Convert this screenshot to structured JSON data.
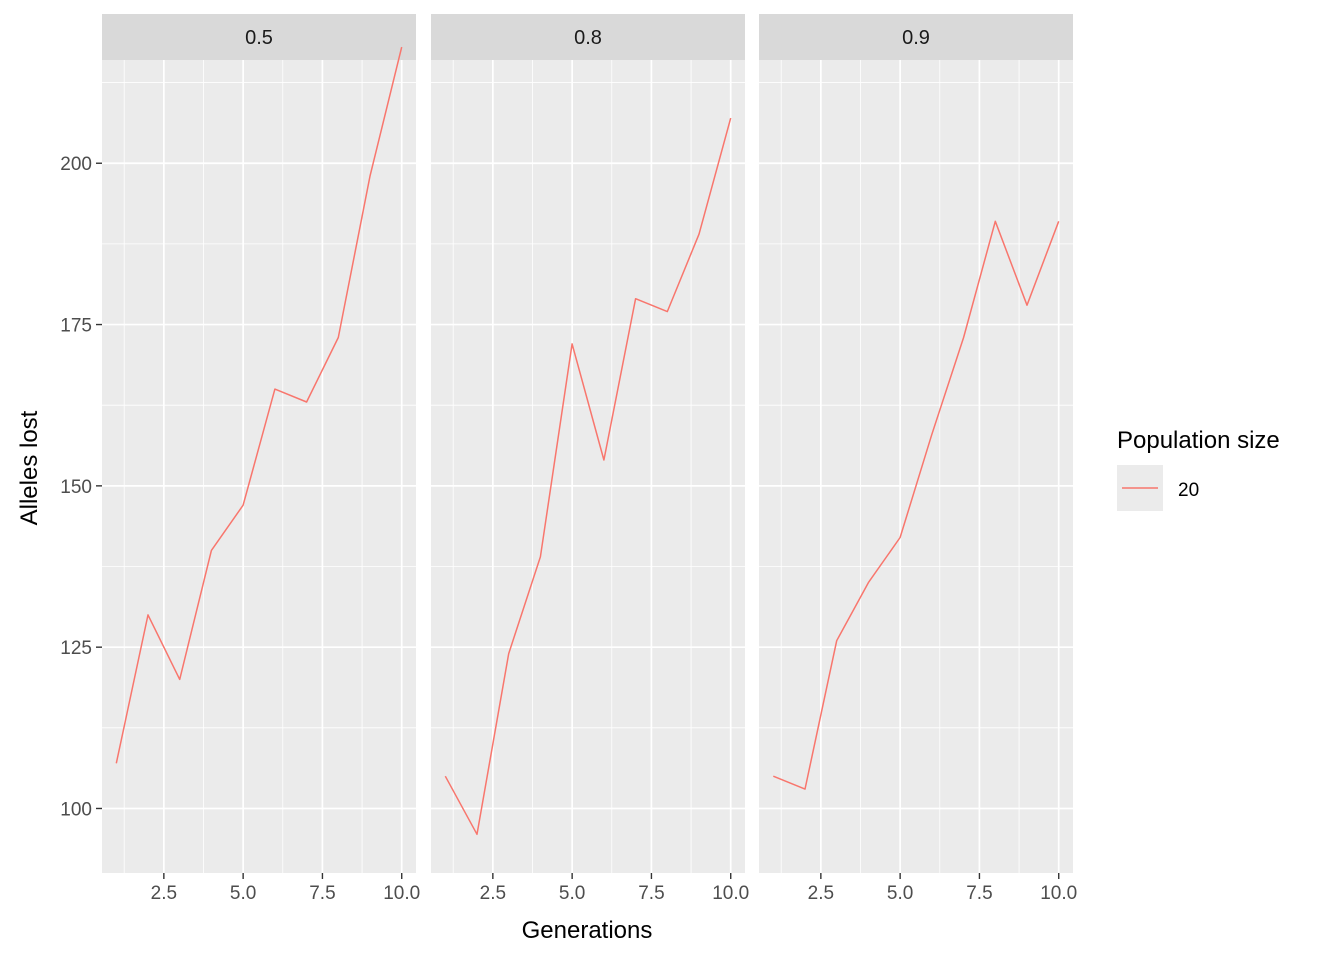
{
  "chart_data": {
    "type": "line",
    "facet_labels": [
      "0.5",
      "0.8",
      "0.9"
    ],
    "xlabel": "Generations",
    "ylabel": "Alleles lost",
    "xlim": [
      0.55,
      10.45
    ],
    "ylim": [
      90,
      216
    ],
    "x_ticks": [
      2.5,
      5.0,
      7.5,
      10.0
    ],
    "x_tick_labels": [
      "2.5",
      "5.0",
      "7.5",
      "10.0"
    ],
    "y_ticks": [
      100,
      125,
      150,
      175,
      200
    ],
    "y_tick_labels": [
      "100",
      "125",
      "150",
      "175",
      "200"
    ],
    "grid": true,
    "x": [
      1,
      2,
      3,
      4,
      5,
      6,
      7,
      8,
      9,
      10
    ],
    "panels": [
      {
        "facet": "0.5",
        "series": [
          {
            "name": "20",
            "values": [
              107,
              130,
              120,
              140,
              147,
              165,
              163,
              173,
              198,
              218
            ]
          }
        ]
      },
      {
        "facet": "0.8",
        "series": [
          {
            "name": "20",
            "values": [
              105,
              96,
              124,
              139,
              172,
              154,
              179,
              177,
              189,
              207
            ]
          }
        ]
      },
      {
        "facet": "0.9",
        "series": [
          {
            "name": "20",
            "values": [
              105,
              103,
              126,
              135,
              142,
              158,
              173,
              191,
              178,
              191
            ]
          }
        ]
      }
    ],
    "legend": {
      "title": "Population size",
      "entries": [
        "20"
      ],
      "position": "right"
    },
    "colors": {
      "series": "#F8766D",
      "panel_bg": "#EBEBEB",
      "strip_bg": "#D9D9D9",
      "grid": "#FFFFFF"
    }
  }
}
